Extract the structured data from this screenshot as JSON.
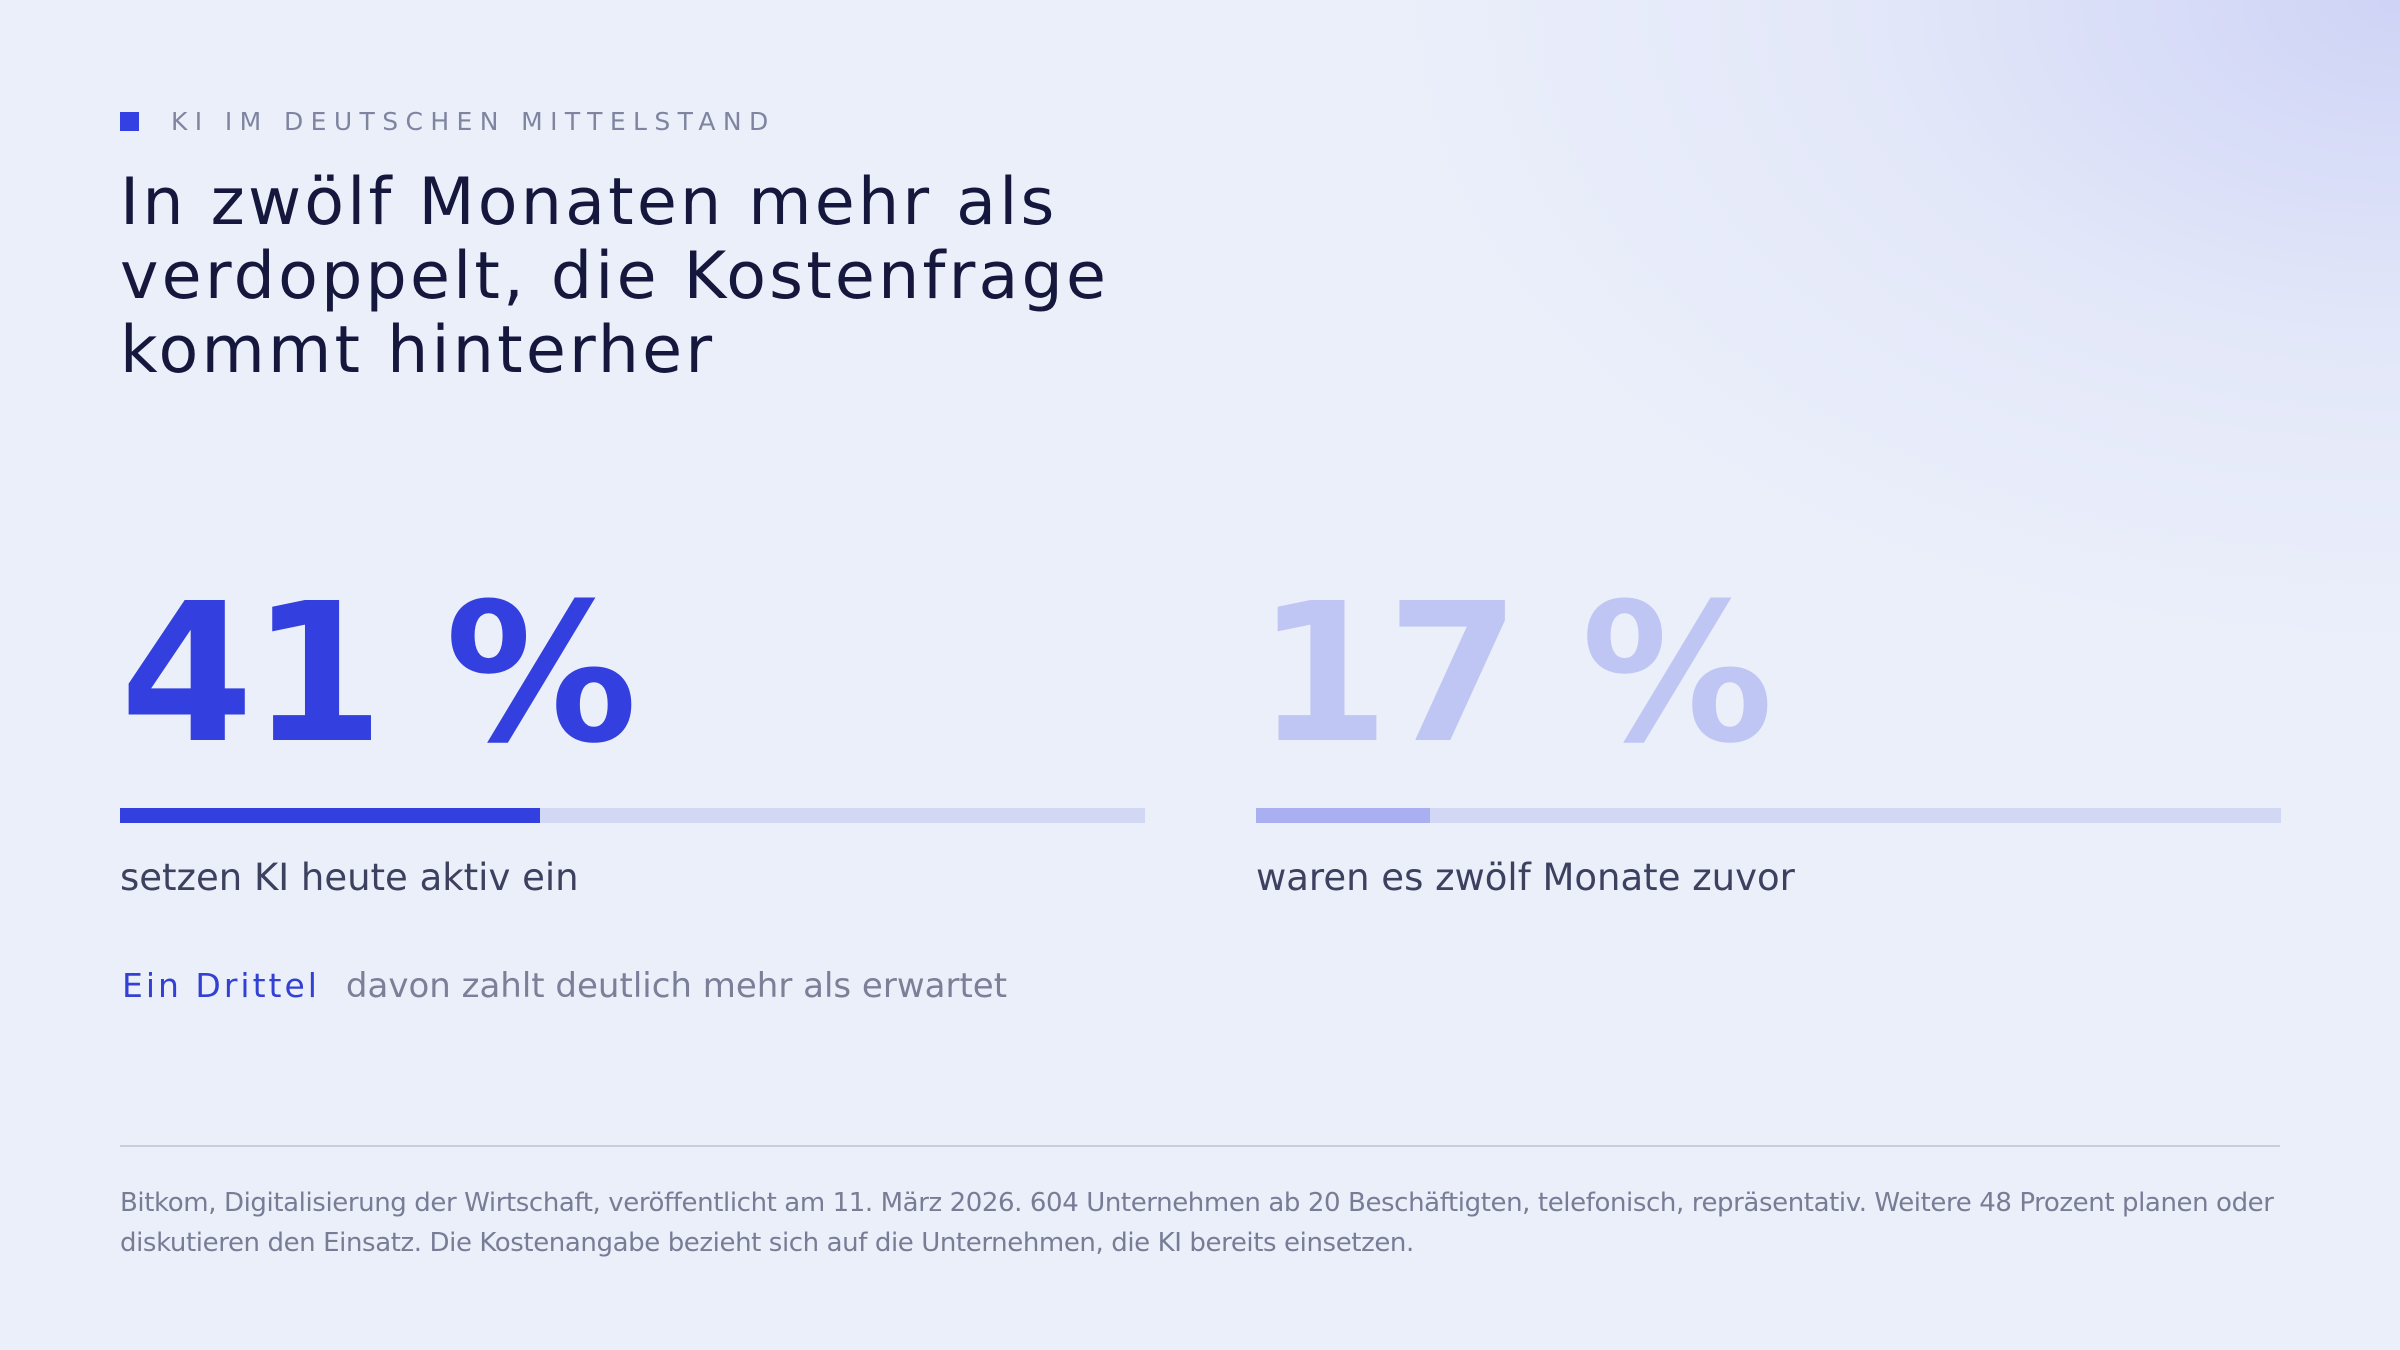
{
  "header": {
    "eyebrow": "KI IM DEUTSCHEN MITTELSTAND",
    "title": "In zwölf Monaten mehr als verdoppelt, die Kostenfrage kommt hinterher"
  },
  "stats": [
    {
      "value_text": "41 %",
      "label": "setzen KI heute aktiv ein"
    },
    {
      "value_text": "17 %",
      "label": "waren es zwölf Monate zuvor"
    }
  ],
  "note": {
    "strong": "Ein Drittel",
    "text": "davon zahlt deutlich mehr als erwartet"
  },
  "source": "Bitkom, Digitalisierung der Wirtschaft, veröffentlicht am 11. März 2026. 604 Unternehmen ab 20 Beschäftigten, telefonisch, repräsentativ. Weitere 48 Prozent planen oder diskutieren den Einsatz. Die Kostenangabe bezieht sich auf die Unternehmen, die KI bereits einsetzen.",
  "colors": {
    "accent": "#333fdf",
    "accent_light": "#c0c6f4",
    "bar_track": "#d2d7f4"
  },
  "chart_data": {
    "type": "bar",
    "orientation": "horizontal",
    "unit": "%",
    "ylim": [
      0,
      100
    ],
    "categories": [
      "setzen KI heute aktiv ein",
      "waren es zwölf Monate zuvor"
    ],
    "values": [
      41,
      17
    ]
  }
}
